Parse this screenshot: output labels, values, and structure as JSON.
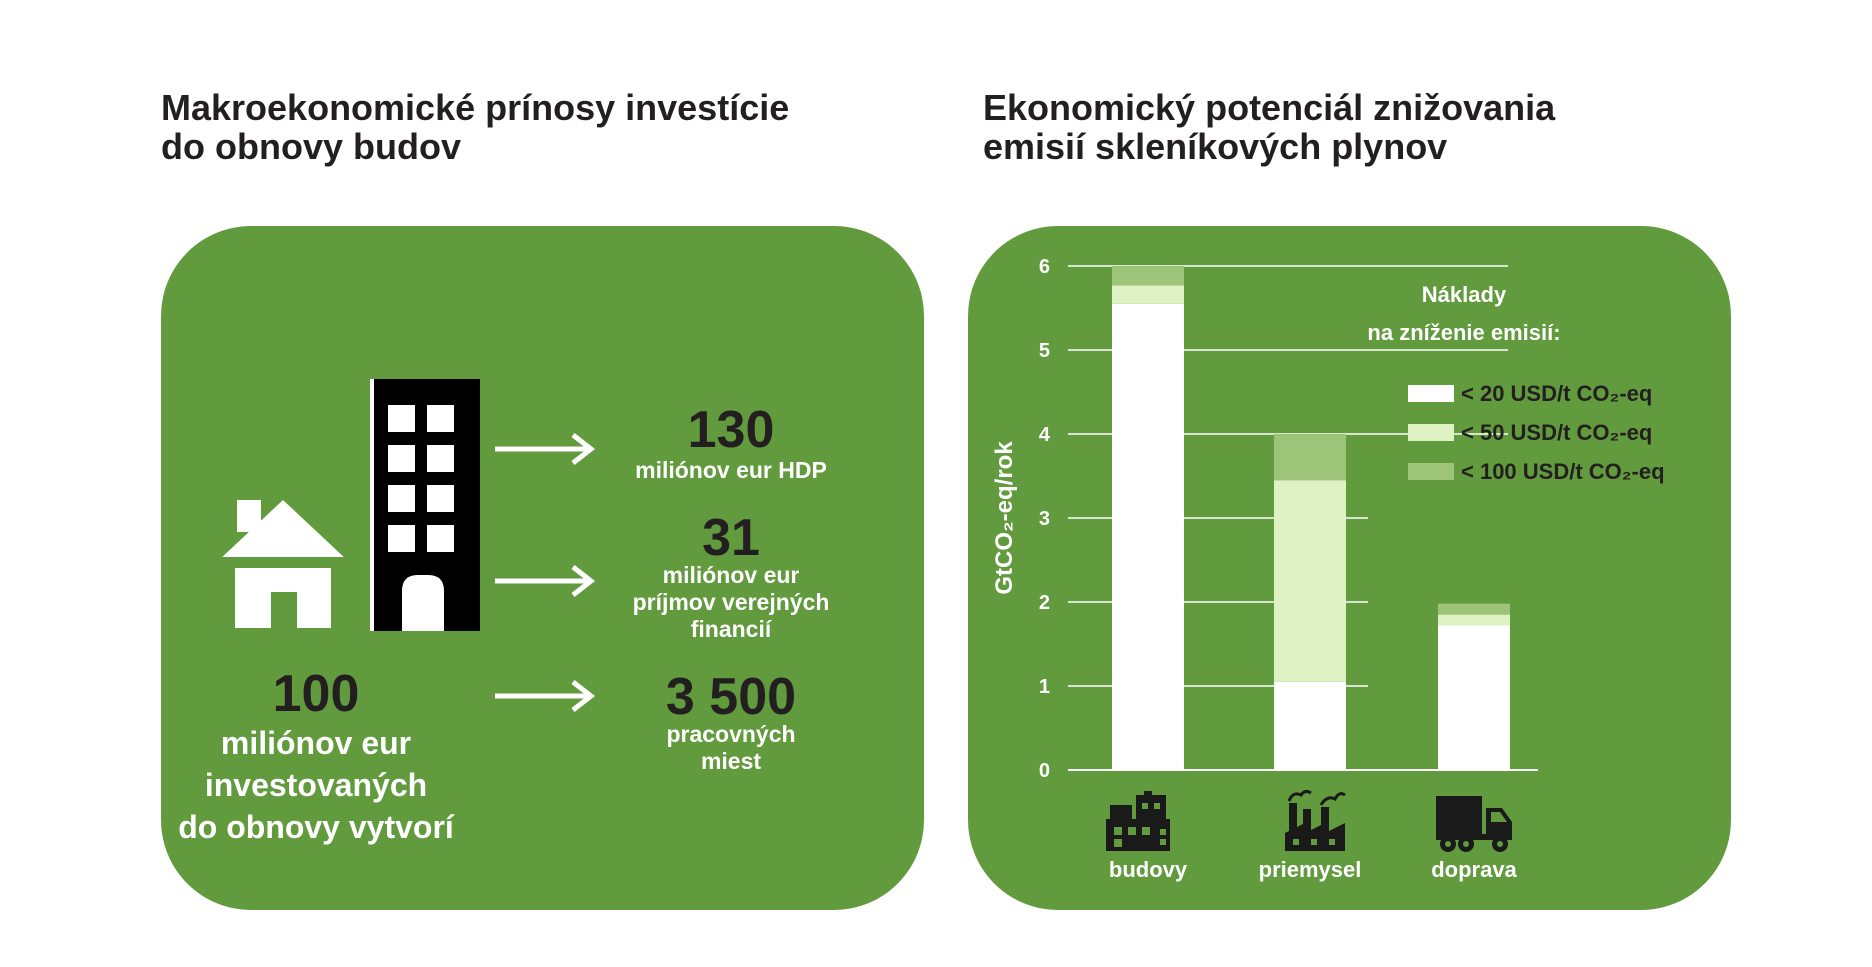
{
  "left": {
    "title_lines": [
      "Makroekonomické prínosy investície",
      "do obnovy budov"
    ],
    "investment": {
      "value": "100",
      "text_lines": [
        "miliónov eur",
        "investovaných",
        "do obnovy vytvorí"
      ]
    },
    "outcomes": [
      {
        "value": "130",
        "text_lines": [
          "miliónov eur HDP"
        ]
      },
      {
        "value": "31",
        "text_lines": [
          "miliónov eur",
          "príjmov verejných",
          "financií"
        ]
      },
      {
        "value": "3 500",
        "text_lines": [
          "pracovných",
          "miest"
        ]
      }
    ],
    "icons": [
      "house-icon",
      "office-building-icon",
      "arrow-right-icon"
    ]
  },
  "right": {
    "title_lines": [
      "Ekonomický potenciál znižovania",
      "emisií skleníkových plynov"
    ]
  },
  "chart_data": {
    "type": "bar",
    "stacked": true,
    "title": "Ekonomický potenciál znižovania emisií skleníkových plynov",
    "ylabel": "GtCO₂-eq/rok",
    "ylim": [
      0,
      6
    ],
    "yticks": [
      0,
      1,
      2,
      3,
      4,
      5,
      6
    ],
    "grid": true,
    "categories": [
      "budovy",
      "priemysel",
      "doprava"
    ],
    "category_icons": [
      "buildings-icon",
      "factory-icon",
      "truck-icon"
    ],
    "legend_title_lines": [
      "Náklady",
      "na zníženie emisií:"
    ],
    "legend_position": "right",
    "series": [
      {
        "name": "< 20 USD/t CO₂-eq",
        "values": [
          5.55,
          1.05,
          1.72
        ],
        "color": "#ffffff"
      },
      {
        "name": "< 50 USD/t CO₂-eq",
        "values": [
          0.22,
          2.4,
          0.13
        ],
        "color": "#dff2c4"
      },
      {
        "name": "< 100 USD/t CO₂-eq",
        "values": [
          0.23,
          0.55,
          0.13
        ],
        "color": "#9ec47a"
      }
    ]
  },
  "colors": {
    "panel": "#629a3e",
    "heading": "#231f20",
    "number": "#231f20",
    "text_light": "#ffffff",
    "icon_dark": "#1a1a1a"
  }
}
